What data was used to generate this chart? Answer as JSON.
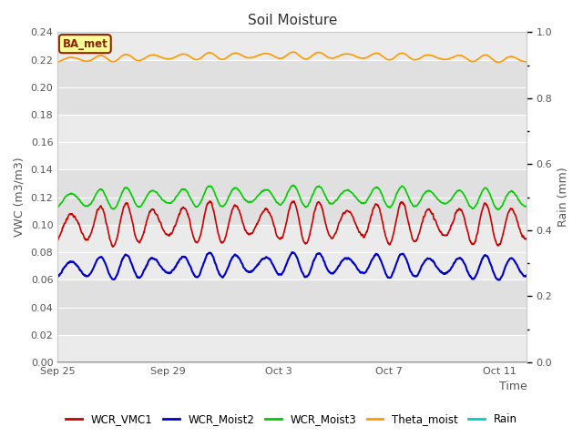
{
  "title": "Soil Moisture",
  "xlabel": "Time",
  "ylabel_left": "VWC (m3/m3)",
  "ylabel_right": "Rain (mm)",
  "ylim_left": [
    0.0,
    0.24
  ],
  "ylim_right": [
    0.0,
    1.0
  ],
  "yticks_left": [
    0.0,
    0.02,
    0.04,
    0.06,
    0.08,
    0.1,
    0.12,
    0.14,
    0.16,
    0.18,
    0.2,
    0.22,
    0.24
  ],
  "yticks_right": [
    0.0,
    0.2,
    0.4,
    0.6,
    0.8,
    1.0
  ],
  "yticks_right_minor": [
    0.1,
    0.3,
    0.5,
    0.7,
    0.9
  ],
  "xtick_labels": [
    "Sep 25",
    "Sep 29",
    "Oct 3",
    "Oct 7",
    "Oct 11"
  ],
  "xtick_positions": [
    0,
    4,
    8,
    12,
    16
  ],
  "bg_color_light": "#ebebeb",
  "bg_color_dark": "#e0e0e0",
  "bg_white": "#f5f5f5",
  "annotation_text": "BA_met",
  "annotation_bg": "#ffff99",
  "annotation_border": "#8b2500",
  "text_color": "#555555",
  "legend_entries": [
    {
      "label": "WCR_VMC1",
      "color": "#cc0000"
    },
    {
      "label": "WCR_Moist2",
      "color": "#0000cc"
    },
    {
      "label": "WCR_Moist3",
      "color": "#00cc00"
    },
    {
      "label": "Theta_moist",
      "color": "#ff9900"
    },
    {
      "label": "Rain",
      "color": "#00cccc"
    }
  ],
  "series": {
    "WCR_VMC1": {
      "base": 0.099,
      "amp": 0.012,
      "freq": 1.0,
      "color": "#cc0000",
      "lw": 1.2
    },
    "WCR_Moist2": {
      "base": 0.068,
      "amp": 0.007,
      "freq": 1.0,
      "color": "#0000cc",
      "lw": 1.5
    },
    "WCR_Moist3": {
      "base": 0.118,
      "amp": 0.006,
      "freq": 1.0,
      "color": "#00cc00",
      "lw": 1.2
    },
    "Theta_moist": {
      "base": 0.22,
      "amp": 0.002,
      "freq": 1.0,
      "color": "#ff9900",
      "lw": 1.2
    },
    "Rain": {
      "base": 0.0,
      "amp": 0.0,
      "freq": 0.0,
      "color": "#00cccc",
      "lw": 1.2
    }
  },
  "n_days": 17,
  "n_points": 2000,
  "band_pairs": [
    [
      0.22,
      0.24
    ],
    [
      0.18,
      0.22
    ],
    [
      0.14,
      0.18
    ],
    [
      0.1,
      0.14
    ],
    [
      0.06,
      0.1
    ],
    [
      0.02,
      0.06
    ],
    [
      0.0,
      0.02
    ]
  ]
}
